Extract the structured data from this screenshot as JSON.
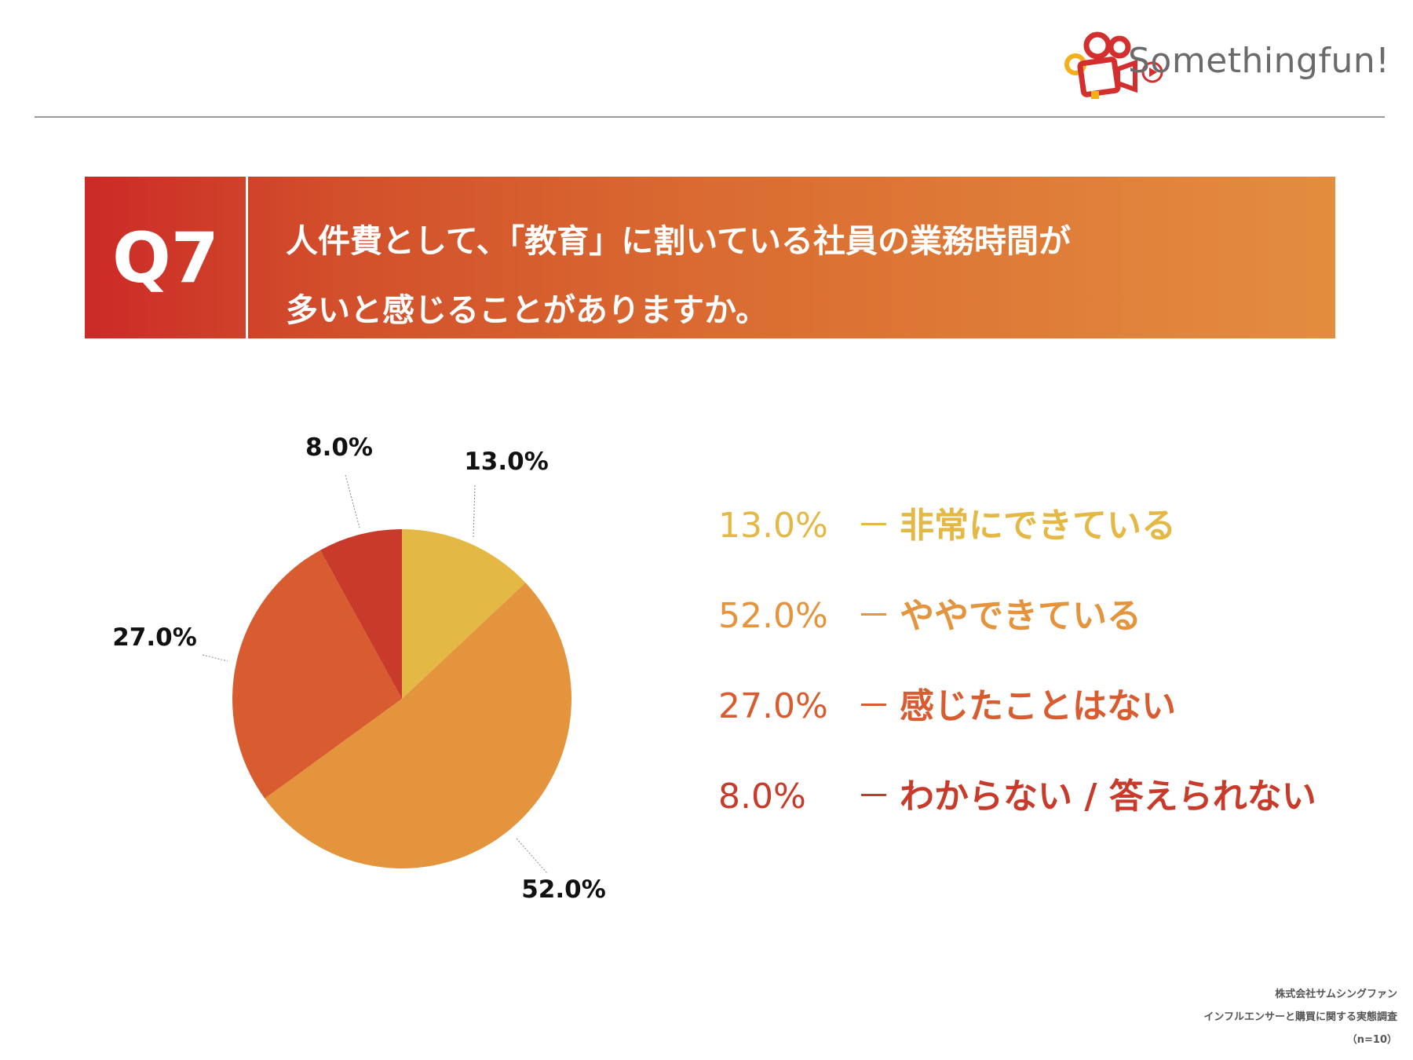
{
  "brand": {
    "name": "Somethingfun!",
    "colors": {
      "red": "#d32f2f",
      "yellow": "#f2b01e",
      "text": "#6b6b6b"
    }
  },
  "question": {
    "number": "Q7",
    "line1": "人件費として、「教育」に割いている社員の業務時間が",
    "line2": "多いと感じることがありますか。"
  },
  "chart_data": {
    "type": "pie",
    "categories": [
      "非常にできている",
      "ややできている",
      "感じたことはない",
      "わからない / 答えられない"
    ],
    "values": [
      13.0,
      52.0,
      27.0,
      8.0
    ],
    "labels": [
      "13.0%",
      "52.0%",
      "27.0%",
      "8.0%"
    ],
    "colors": [
      "#e4b844",
      "#e3943d",
      "#d95c30",
      "#c83a29"
    ],
    "start": "12 o'clock",
    "direction": "clockwise"
  },
  "legend": [
    {
      "pct": "13.0%",
      "dash": "－",
      "label": "非常にできている",
      "color": "#e4b844"
    },
    {
      "pct": "52.0%",
      "dash": "－",
      "label": "ややできている",
      "color": "#e3943d"
    },
    {
      "pct": "27.0%",
      "dash": "－",
      "label": "感じたことはない",
      "color": "#d95c30"
    },
    {
      "pct": "8.0%",
      "dash": "－",
      "label": "わからない / 答えられない",
      "color": "#c83a29"
    }
  ],
  "footer": {
    "company": "株式会社サムシングファン",
    "survey": "インフルエンサーと購買に関する実態調査",
    "sample": "（n=10）"
  }
}
